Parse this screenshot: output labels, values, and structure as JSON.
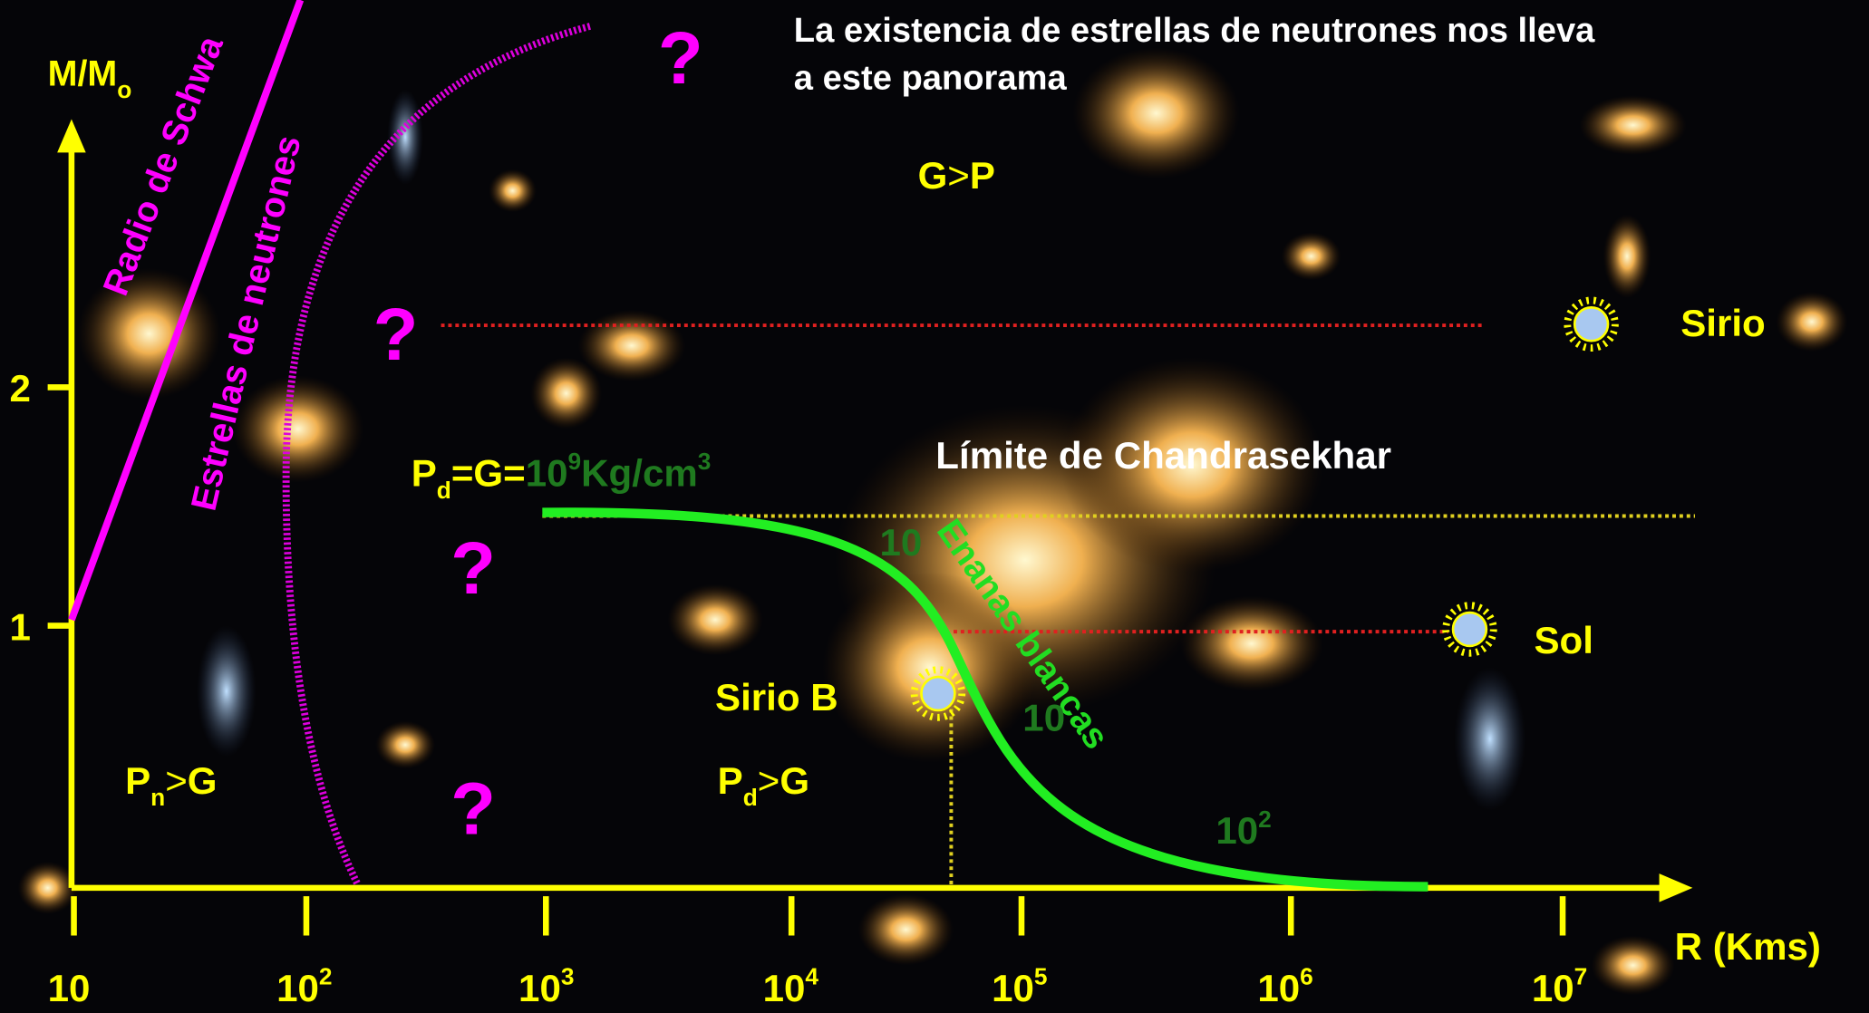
{
  "title": {
    "line1": "La existencia de estrellas de neutrones nos lleva",
    "line2": "a este panorama"
  },
  "y_axis": {
    "label": "M/M",
    "label_sub": "o",
    "ticks": [
      "2",
      "1"
    ]
  },
  "x_axis": {
    "label": "R (Kms)",
    "ticks": [
      {
        "base": "10"
      },
      {
        "base": "10",
        "exp": "2"
      },
      {
        "base": "10",
        "exp": "3"
      },
      {
        "base": "10",
        "exp": "4"
      },
      {
        "base": "10",
        "exp": "5"
      },
      {
        "base": "10",
        "exp": "6"
      },
      {
        "base": "10",
        "exp": "7"
      }
    ]
  },
  "curves": {
    "schwarzschild": "Radio de Schwa",
    "neutron_stars": "Estrellas de neutrones",
    "white_dwarfs": "Enanas blancas",
    "chandrasekhar": "Límite de Chandrasekhar"
  },
  "density": {
    "p": "P",
    "p_sub": "d",
    "eq1": "=",
    "g": "G",
    "eq2": "=",
    "base": "10",
    "exp": "9",
    "unit": "Kg/cm",
    "unit_exp": "3"
  },
  "curve_labels": [
    {
      "base": "10"
    },
    {
      "base": "10"
    },
    {
      "base": "10",
      "exp": "2"
    }
  ],
  "regions": {
    "g_over_p": {
      "left": "G",
      "op": ">",
      "right": "P"
    },
    "pn_over_g": {
      "left": "P",
      "sub": "n",
      "op": ">",
      "right": "G"
    },
    "pd_over_g": {
      "left": "P",
      "sub": "d",
      "op": ">",
      "right": "G"
    }
  },
  "stars": {
    "sirio": "Sirio",
    "sol": "Sol",
    "sirio_b": "Sirio B"
  },
  "questions": [
    "?",
    "?",
    "?",
    "?"
  ]
}
